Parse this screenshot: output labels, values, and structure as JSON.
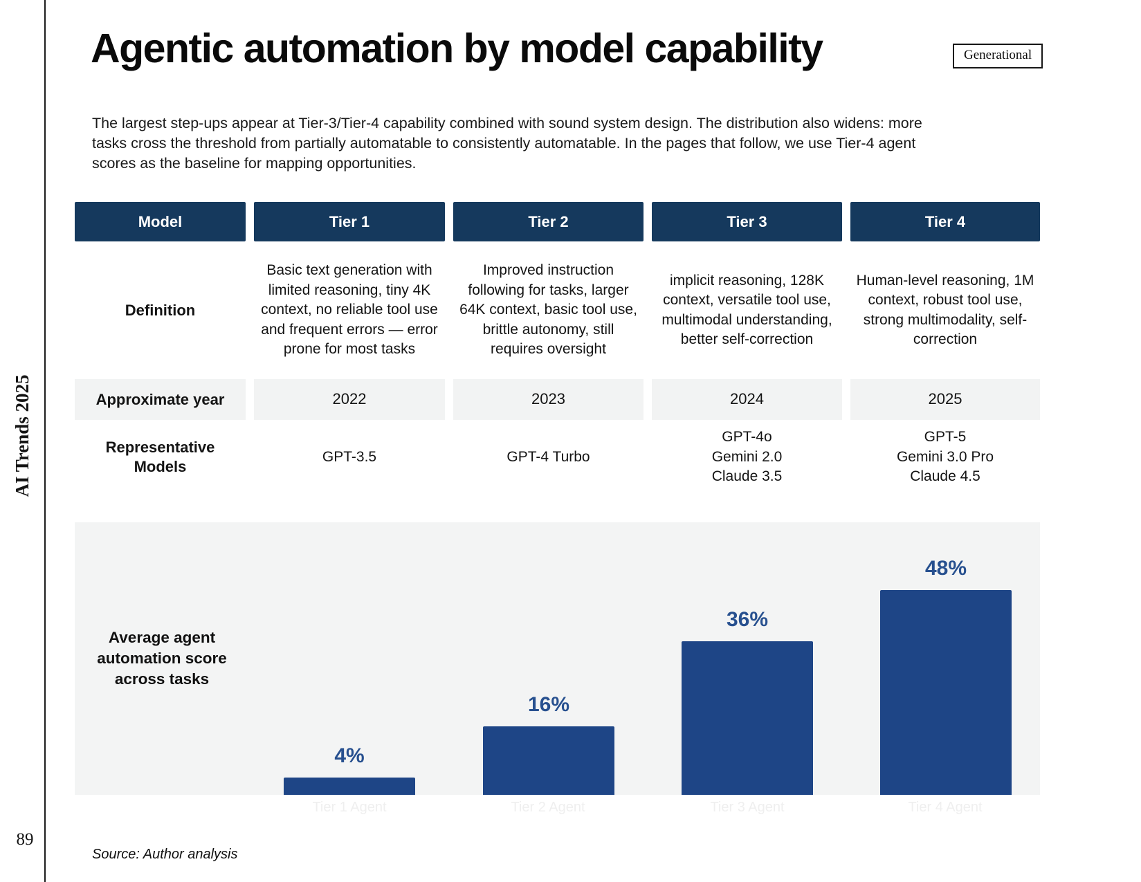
{
  "page": {
    "sidebar_text": "AI Trends 2025",
    "page_number": "89",
    "title": "Agentic automation by model capability",
    "badge": "Generational",
    "intro": "The largest step-ups appear at Tier-3/Tier-4 capability combined with sound system design. The distribution also widens: more\ntasks cross the threshold from partially automatable to consistently automatable. In the pages that follow, we use Tier-4 agent\nscores as the baseline for mapping opportunities.",
    "source": "Source: Author analysis"
  },
  "table": {
    "columns": [
      "Model",
      "Tier 1",
      "Tier 2",
      "Tier 3",
      "Tier 4"
    ],
    "rows": {
      "definition": {
        "label": "Definition",
        "values": [
          "Basic text generation with limited reasoning, tiny 4K context, no reliable tool use and frequent errors — error prone for most tasks",
          "Improved instruction following for tasks, larger 64K context, basic tool use, brittle autonomy, still requires oversight",
          "implicit reasoning, 128K context, versatile tool use, multimodal understanding, better self-correction",
          "Human-level reasoning, 1M context, robust tool use, strong multimodality, self-correction"
        ]
      },
      "year": {
        "label": "Approximate year",
        "values": [
          "2022",
          "2023",
          "2024",
          "2025"
        ]
      },
      "models": {
        "label": "Representative\nModels",
        "values": [
          "GPT-3.5",
          "GPT-4 Turbo",
          "GPT-4o\nGemini 2.0\nClaude 3.5",
          "GPT-5\nGemini 3.0 Pro\nClaude 4.5"
        ]
      }
    }
  },
  "chart_data": {
    "type": "bar",
    "title": "Average agent automation score across tasks",
    "categories": [
      "Tier 1 Agent",
      "Tier 2 Agent",
      "Tier 3 Agent",
      "Tier 4 Agent"
    ],
    "values": [
      4,
      16,
      36,
      48
    ],
    "labels": [
      "4%",
      "16%",
      "36%",
      "48%"
    ],
    "xlabel": "",
    "ylabel": "Average agent automation score across tasks",
    "ylim": [
      0,
      64
    ],
    "grid": false,
    "legend": "none",
    "bar_color": "#1E4586",
    "label_color": "#27508F",
    "plot_bg": "#F3F4F4"
  }
}
